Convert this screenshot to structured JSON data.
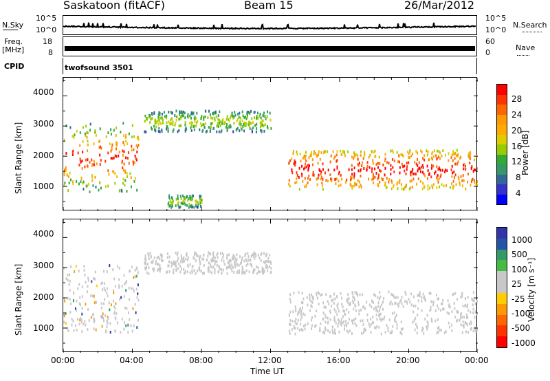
{
  "header": {
    "station": "Saskatoon (fitACF)",
    "beam": "Beam 15",
    "date": "26/Mar/2012"
  },
  "strip_labels": {
    "nsky": "N.Sky",
    "freq": "Freq.",
    "freq_unit": "[MHz]",
    "cpid": "CPID",
    "nsearch": "N.Search",
    "nave": "Nave",
    "cpid_value": "twofsound 3501",
    "noise_ticks_left": [
      "10^5",
      "10^0"
    ],
    "noise_ticks_right": [
      "10^5",
      "10^0"
    ],
    "freq_ticks_left": [
      "18",
      "8"
    ],
    "nave_ticks_right": [
      "60",
      "0"
    ]
  },
  "power_panel": {
    "ylabel": "Slant Range [km]",
    "yticks": [
      "4000",
      "3000",
      "2000",
      "1000"
    ],
    "colorbar_label": "Power [dB]",
    "colorbar_ticks": [
      "28",
      "24",
      "20",
      "16",
      "12",
      "8",
      "4"
    ],
    "colorbar_colors": [
      "#ff0000",
      "#ff3300",
      "#ff6600",
      "#ff9900",
      "#ffaa00",
      "#ddcc00",
      "#99cc00",
      "#33aa33",
      "#339966",
      "#336699",
      "#3333cc",
      "#0000ff"
    ]
  },
  "velocity_panel": {
    "ylabel": "Slant Range [km]",
    "yticks": [
      "4000",
      "3000",
      "2000",
      "1000"
    ],
    "colorbar_label": "Velocity [m s⁻¹]",
    "colorbar_ticks": [
      "1000",
      "500",
      "100",
      "25",
      "-25",
      "-100",
      "-500",
      "-1000"
    ],
    "colorbar_colors": [
      "#3333aa",
      "#2255aa",
      "#339966",
      "#44bb44",
      "#c8c8c8",
      "#c8c8c8",
      "#ffcc00",
      "#ff9900",
      "#ff6600",
      "#ff3300",
      "#ff0000"
    ]
  },
  "xaxis": {
    "ticks": [
      "00:00",
      "04:00",
      "08:00",
      "12:00",
      "16:00",
      "20:00",
      "00:00"
    ],
    "label": "Time UT"
  },
  "chart_data": [
    {
      "type": "heatmap",
      "title": "Saskatoon (fitACF) Beam 15 26/Mar/2012",
      "quantity": "Power [dB]",
      "xlabel": "Time UT",
      "ylabel": "Slant Range [km]",
      "xlim": [
        "00:00",
        "24:00"
      ],
      "ylim": [
        180,
        4600
      ],
      "color_scale": [
        0,
        30
      ],
      "features": [
        {
          "name": "early echoes",
          "time": "00:00-04:20",
          "range_km": [
            800,
            3100
          ],
          "power_db": [
            4,
            28
          ]
        },
        {
          "name": "upper arc",
          "time": "04:40-12:00",
          "range_km": [
            2800,
            3500
          ],
          "power_db": [
            4,
            16
          ]
        },
        {
          "name": "meteor trail",
          "time": "06:00-08:00",
          "range_km": [
            300,
            700
          ],
          "power_db": [
            4,
            16
          ]
        },
        {
          "name": "main band",
          "time": "13:00-24:00",
          "range_km": [
            900,
            2200
          ],
          "power_db": [
            12,
            30
          ]
        }
      ]
    },
    {
      "type": "heatmap",
      "title": "Saskatoon (fitACF) Beam 15 26/Mar/2012",
      "quantity": "Velocity [m s-1]",
      "xlabel": "Time UT",
      "ylabel": "Slant Range [km]",
      "xlim": [
        "00:00",
        "24:00"
      ],
      "ylim": [
        180,
        4600
      ],
      "color_scale": [
        -1000,
        1000
      ],
      "features": [
        {
          "name": "early echoes",
          "time": "00:00-04:20",
          "range_km": [
            800,
            3100
          ],
          "velocity": [
            -500,
            1000
          ]
        },
        {
          "name": "upper arc",
          "time": "04:40-12:00",
          "range_km": [
            2800,
            3500
          ],
          "velocity": [
            -25,
            25
          ]
        },
        {
          "name": "main band",
          "time": "13:00-24:00",
          "range_km": [
            800,
            2200
          ],
          "velocity": [
            -25,
            25
          ]
        }
      ]
    },
    {
      "type": "line",
      "name": "Noise (sky / search)",
      "yscale": "log",
      "ylim": [
        1,
        100000
      ],
      "xlim": [
        "00:00",
        "24:00"
      ]
    },
    {
      "type": "line",
      "name": "Frequency / Nave",
      "freq_ylim": [
        8,
        18
      ],
      "nave_ylim": [
        0,
        60
      ],
      "xlim": [
        "00:00",
        "24:00"
      ]
    }
  ]
}
